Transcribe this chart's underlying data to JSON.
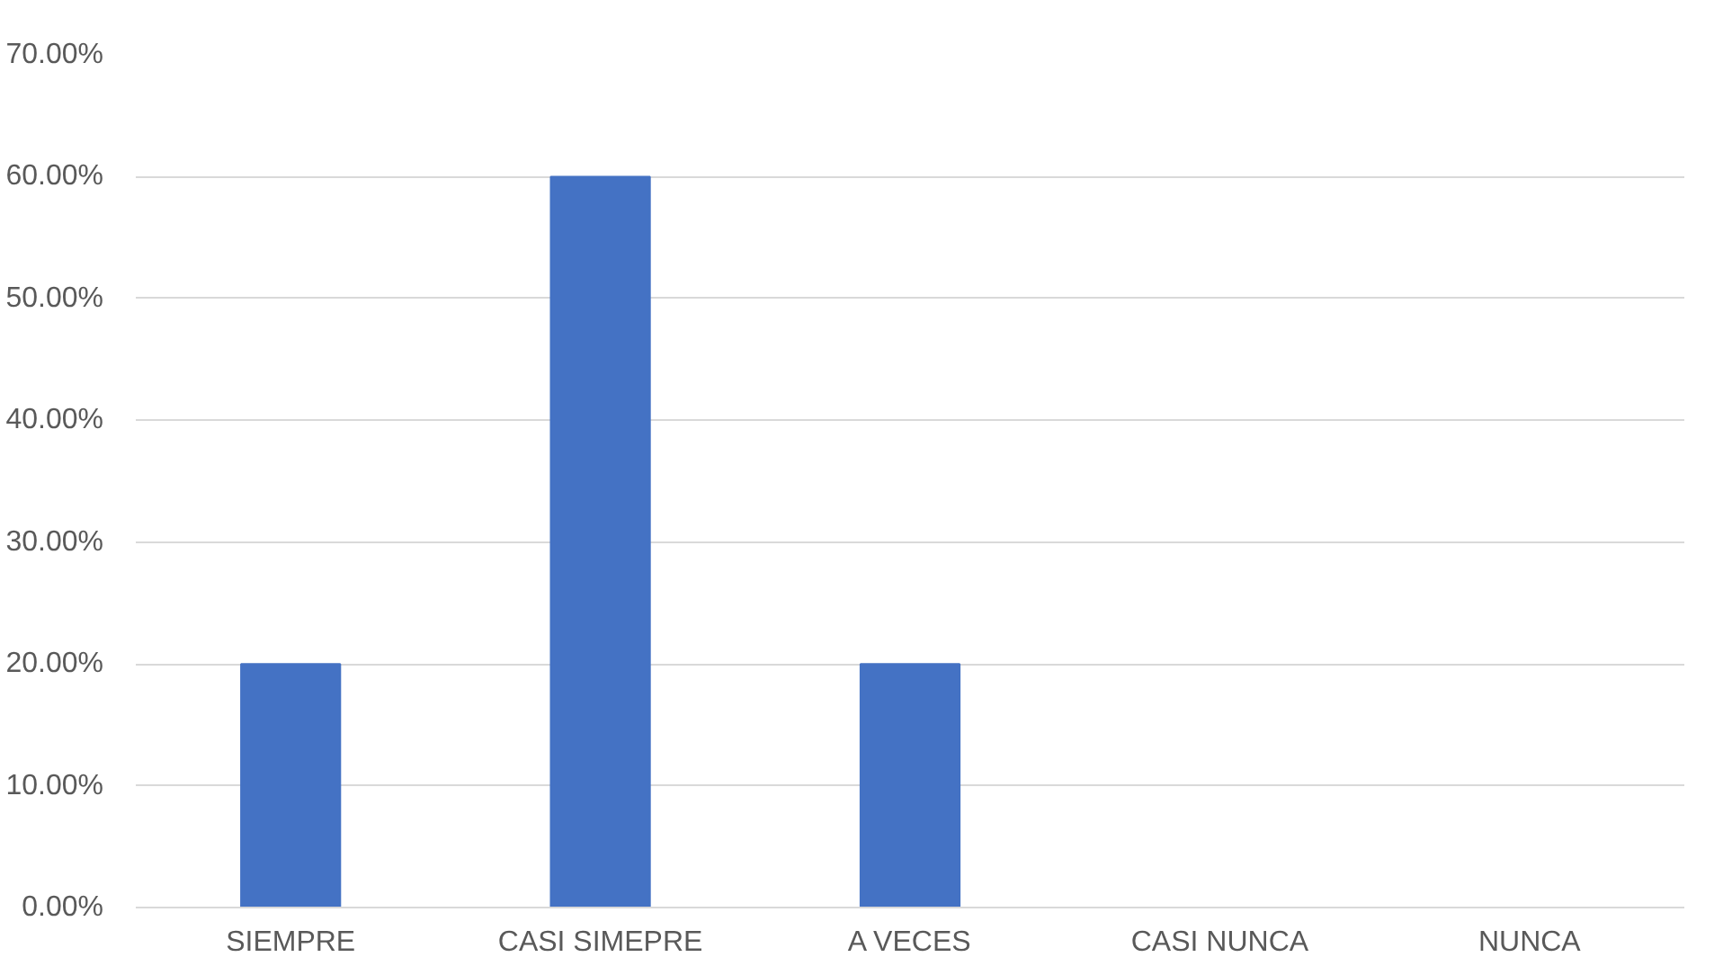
{
  "chart_data": {
    "type": "bar",
    "categories": [
      "SIEMPRE",
      "CASI SIMEPRE",
      "A VECES",
      "CASI NUNCA",
      "NUNCA"
    ],
    "values": [
      20,
      60,
      20,
      0,
      0
    ],
    "color": "#4472c4",
    "ylim": [
      0,
      70
    ],
    "yticks": [
      {
        "value": 0,
        "label": "0.00%"
      },
      {
        "value": 10,
        "label": "10.00%"
      },
      {
        "value": 20,
        "label": "20.00%"
      },
      {
        "value": 30,
        "label": "30.00%"
      },
      {
        "value": 40,
        "label": "40.00%"
      },
      {
        "value": 50,
        "label": "50.00%"
      },
      {
        "value": 60,
        "label": "60.00%"
      },
      {
        "value": 70,
        "label": "70.00%"
      }
    ],
    "grid": "y"
  }
}
